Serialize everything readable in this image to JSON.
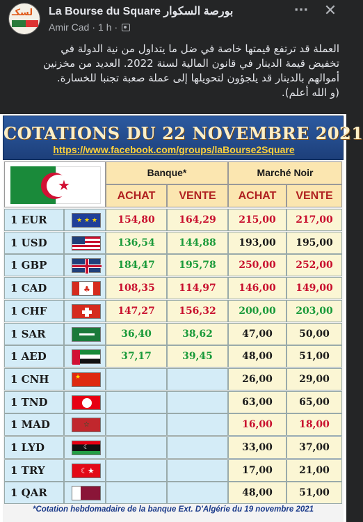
{
  "post": {
    "page_name": "La Bourse du Square بورصة السكوار",
    "author": "Amir Cad",
    "time": "1 h",
    "separator": "·",
    "more_icon": "more-dots-icon",
    "close_icon": "close-icon",
    "text_lines": [
      "العملة قد ترتفع قيمتها خاصة في ضل ما يتداول من نية الدولة في",
      "تخفيض قيمة الدينار في قانون المالية لسنة 2022. العديد من مخزنين",
      "أموالهم بالدينار قد يلجؤون لتحويلها إلى عملة صعبة تجنبا للخسارة.",
      "(و الله أعلم)."
    ]
  },
  "table": {
    "title": "COTATIONS DU 22 NOVEMBRE 2021",
    "url": "https://www.facebook.com/groups/laBourse2Square",
    "groups": {
      "banque": "Banque*",
      "marche": "Marché Noir"
    },
    "sub": {
      "achat": "ACHAT",
      "vente": "VENTE"
    },
    "colors": {
      "red": "#c8102e",
      "green": "#1a9a3a",
      "black": "#1a1a1a"
    },
    "rows": [
      {
        "code": "1 EUR",
        "flag": "eu",
        "b_achat": "154,80",
        "b_vente": "164,29",
        "m_achat": "215,00",
        "m_vente": "217,00",
        "color": "red"
      },
      {
        "code": "1 USD",
        "flag": "us",
        "b_achat": "136,54",
        "b_vente": "144,88",
        "m_achat": "193,00",
        "m_vente": "195,00",
        "color": "green",
        "m_color": "black"
      },
      {
        "code": "1 GBP",
        "flag": "gb",
        "b_achat": "184,47",
        "b_vente": "195,78",
        "m_achat": "250,00",
        "m_vente": "252,00",
        "color": "green",
        "m_color": "red"
      },
      {
        "code": "1 CAD",
        "flag": "ca",
        "b_achat": "108,35",
        "b_vente": "114,97",
        "m_achat": "146,00",
        "m_vente": "149,00",
        "color": "red"
      },
      {
        "code": "1 CHF",
        "flag": "ch",
        "b_achat": "147,27",
        "b_vente": "156,32",
        "m_achat": "200,00",
        "m_vente": "203,00",
        "color": "red",
        "m_color": "green"
      },
      {
        "code": "1 SAR",
        "flag": "sa",
        "b_achat": "36,40",
        "b_vente": "38,62",
        "m_achat": "47,00",
        "m_vente": "50,00",
        "color": "green",
        "m_color": "black"
      },
      {
        "code": "1 AED",
        "flag": "ae",
        "b_achat": "37,17",
        "b_vente": "39,45",
        "m_achat": "48,00",
        "m_vente": "51,00",
        "color": "green",
        "m_color": "black"
      },
      {
        "code": "1 CNH",
        "flag": "cn",
        "b_achat": "",
        "b_vente": "",
        "m_achat": "26,00",
        "m_vente": "29,00",
        "color": "black"
      },
      {
        "code": "1 TND",
        "flag": "tn",
        "b_achat": "",
        "b_vente": "",
        "m_achat": "63,00",
        "m_vente": "65,00",
        "color": "black"
      },
      {
        "code": "1 MAD",
        "flag": "ma",
        "b_achat": "",
        "b_vente": "",
        "m_achat": "16,00",
        "m_vente": "18,00",
        "color": "red"
      },
      {
        "code": "1 LYD",
        "flag": "ly",
        "b_achat": "",
        "b_vente": "",
        "m_achat": "33,00",
        "m_vente": "37,00",
        "color": "black"
      },
      {
        "code": "1 TRY",
        "flag": "tr",
        "b_achat": "",
        "b_vente": "",
        "m_achat": "17,00",
        "m_vente": "21,00",
        "color": "black"
      },
      {
        "code": "1 QAR",
        "flag": "qa",
        "b_achat": "",
        "b_vente": "",
        "m_achat": "48,00",
        "m_vente": "51,00",
        "color": "black"
      }
    ],
    "footnote": "*Cotation hebdomadaire de la banque Ext. D'Algérie du 19 novembre 2021"
  }
}
